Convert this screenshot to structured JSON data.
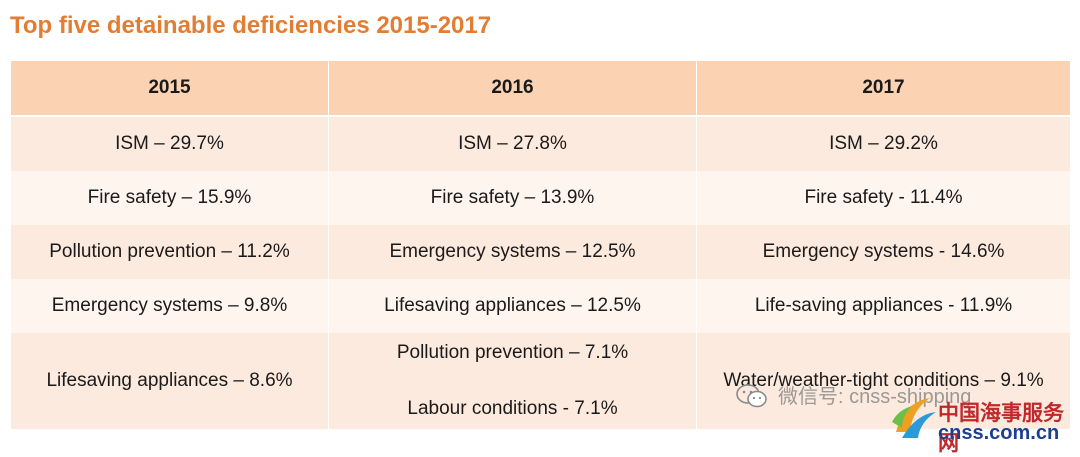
{
  "title": "Top five detainable deficiencies 2015-2017",
  "table": {
    "headers": [
      "2015",
      "2016",
      "2017"
    ],
    "rows": [
      [
        "ISM – 29.7%",
        "ISM – 27.8%",
        "ISM – 29.2%"
      ],
      [
        "Fire safety – 15.9%",
        "Fire safety – 13.9%",
        "Fire safety - 11.4%"
      ],
      [
        "Pollution prevention – 11.2%",
        "Emergency systems – 12.5%",
        "Emergency systems - 14.6%"
      ],
      [
        "Emergency systems – 9.8%",
        "Lifesaving appliances – 12.5%",
        "Life-saving appliances - 11.9%"
      ]
    ],
    "last_row": {
      "col2015": "Lifesaving appliances – 8.6%",
      "col2016_a": "Pollution prevention – 7.1%",
      "col2016_b": "Labour conditions - 7.1%",
      "col2017": "Water/weather-tight conditions – 9.1%"
    }
  },
  "watermark": {
    "text": "微信号: cnss-shipping",
    "icon": "wechat-icon"
  },
  "logo": {
    "cn": "中国海事服务网",
    "en": "cnss.com.cn"
  },
  "colors": {
    "title": "#e27d33",
    "header_bg": "#fbd3b2",
    "row_dark": "#fdeade",
    "row_light": "#fef5ef"
  }
}
